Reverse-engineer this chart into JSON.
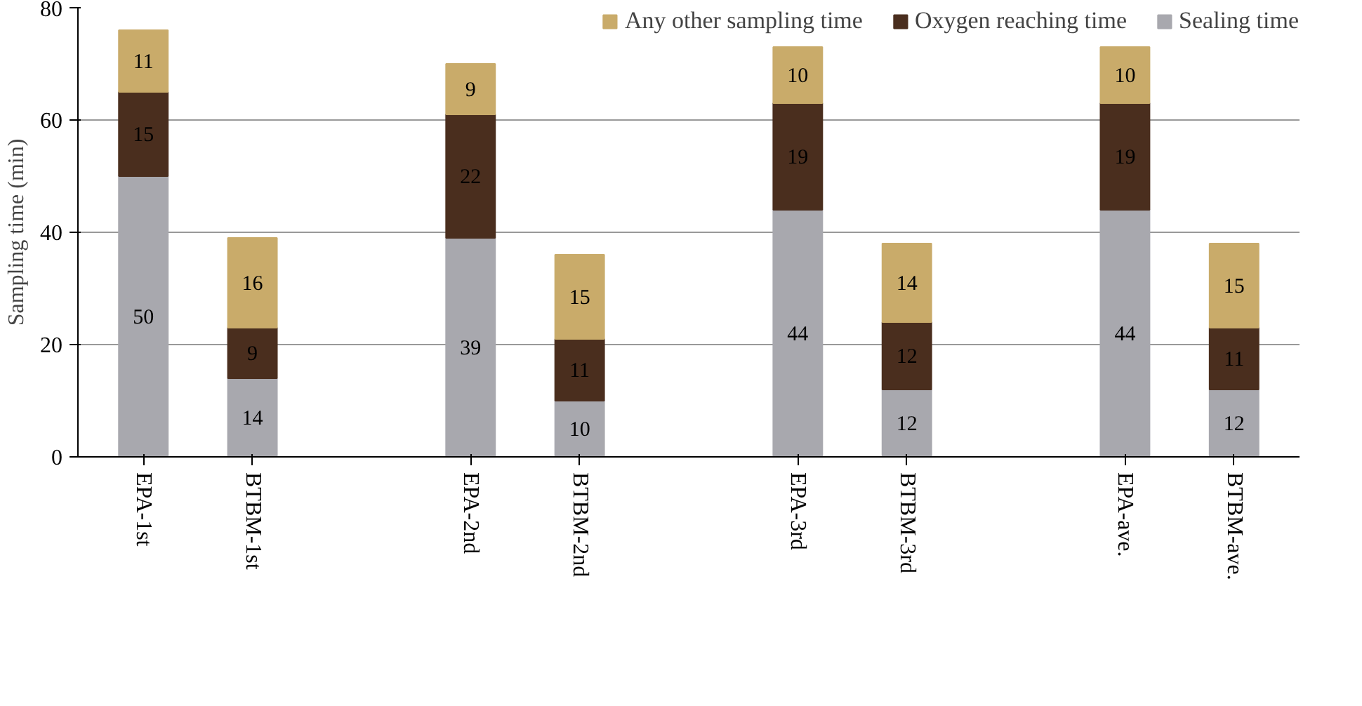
{
  "chart_data": {
    "type": "bar",
    "stacked": true,
    "ylabel": "Sampling time (min)",
    "categories": [
      "EPA-1st",
      "BTBM-1st",
      null,
      "EPA-2nd",
      "BTBM-2nd",
      null,
      "EPA-3rd",
      "BTBM-3rd",
      null,
      "EPA-ave.",
      "BTBM-ave."
    ],
    "series": [
      {
        "name": "Sealing time",
        "color": "#a8a8ae",
        "values": [
          50,
          14,
          null,
          39,
          10,
          null,
          44,
          12,
          null,
          44,
          12
        ]
      },
      {
        "name": "Oxygen reaching time",
        "color": "#4a2e1e",
        "values": [
          15,
          9,
          null,
          22,
          11,
          null,
          19,
          12,
          null,
          19,
          11
        ]
      },
      {
        "name": "Any other sampling time",
        "color": "#c9ab6a",
        "values": [
          11,
          16,
          null,
          9,
          15,
          null,
          10,
          14,
          null,
          10,
          15
        ]
      }
    ],
    "ylim": [
      0,
      80
    ],
    "yticks": [
      0,
      20,
      40,
      60,
      80
    ],
    "grid": "y",
    "legend": "top",
    "data_labels": true
  }
}
